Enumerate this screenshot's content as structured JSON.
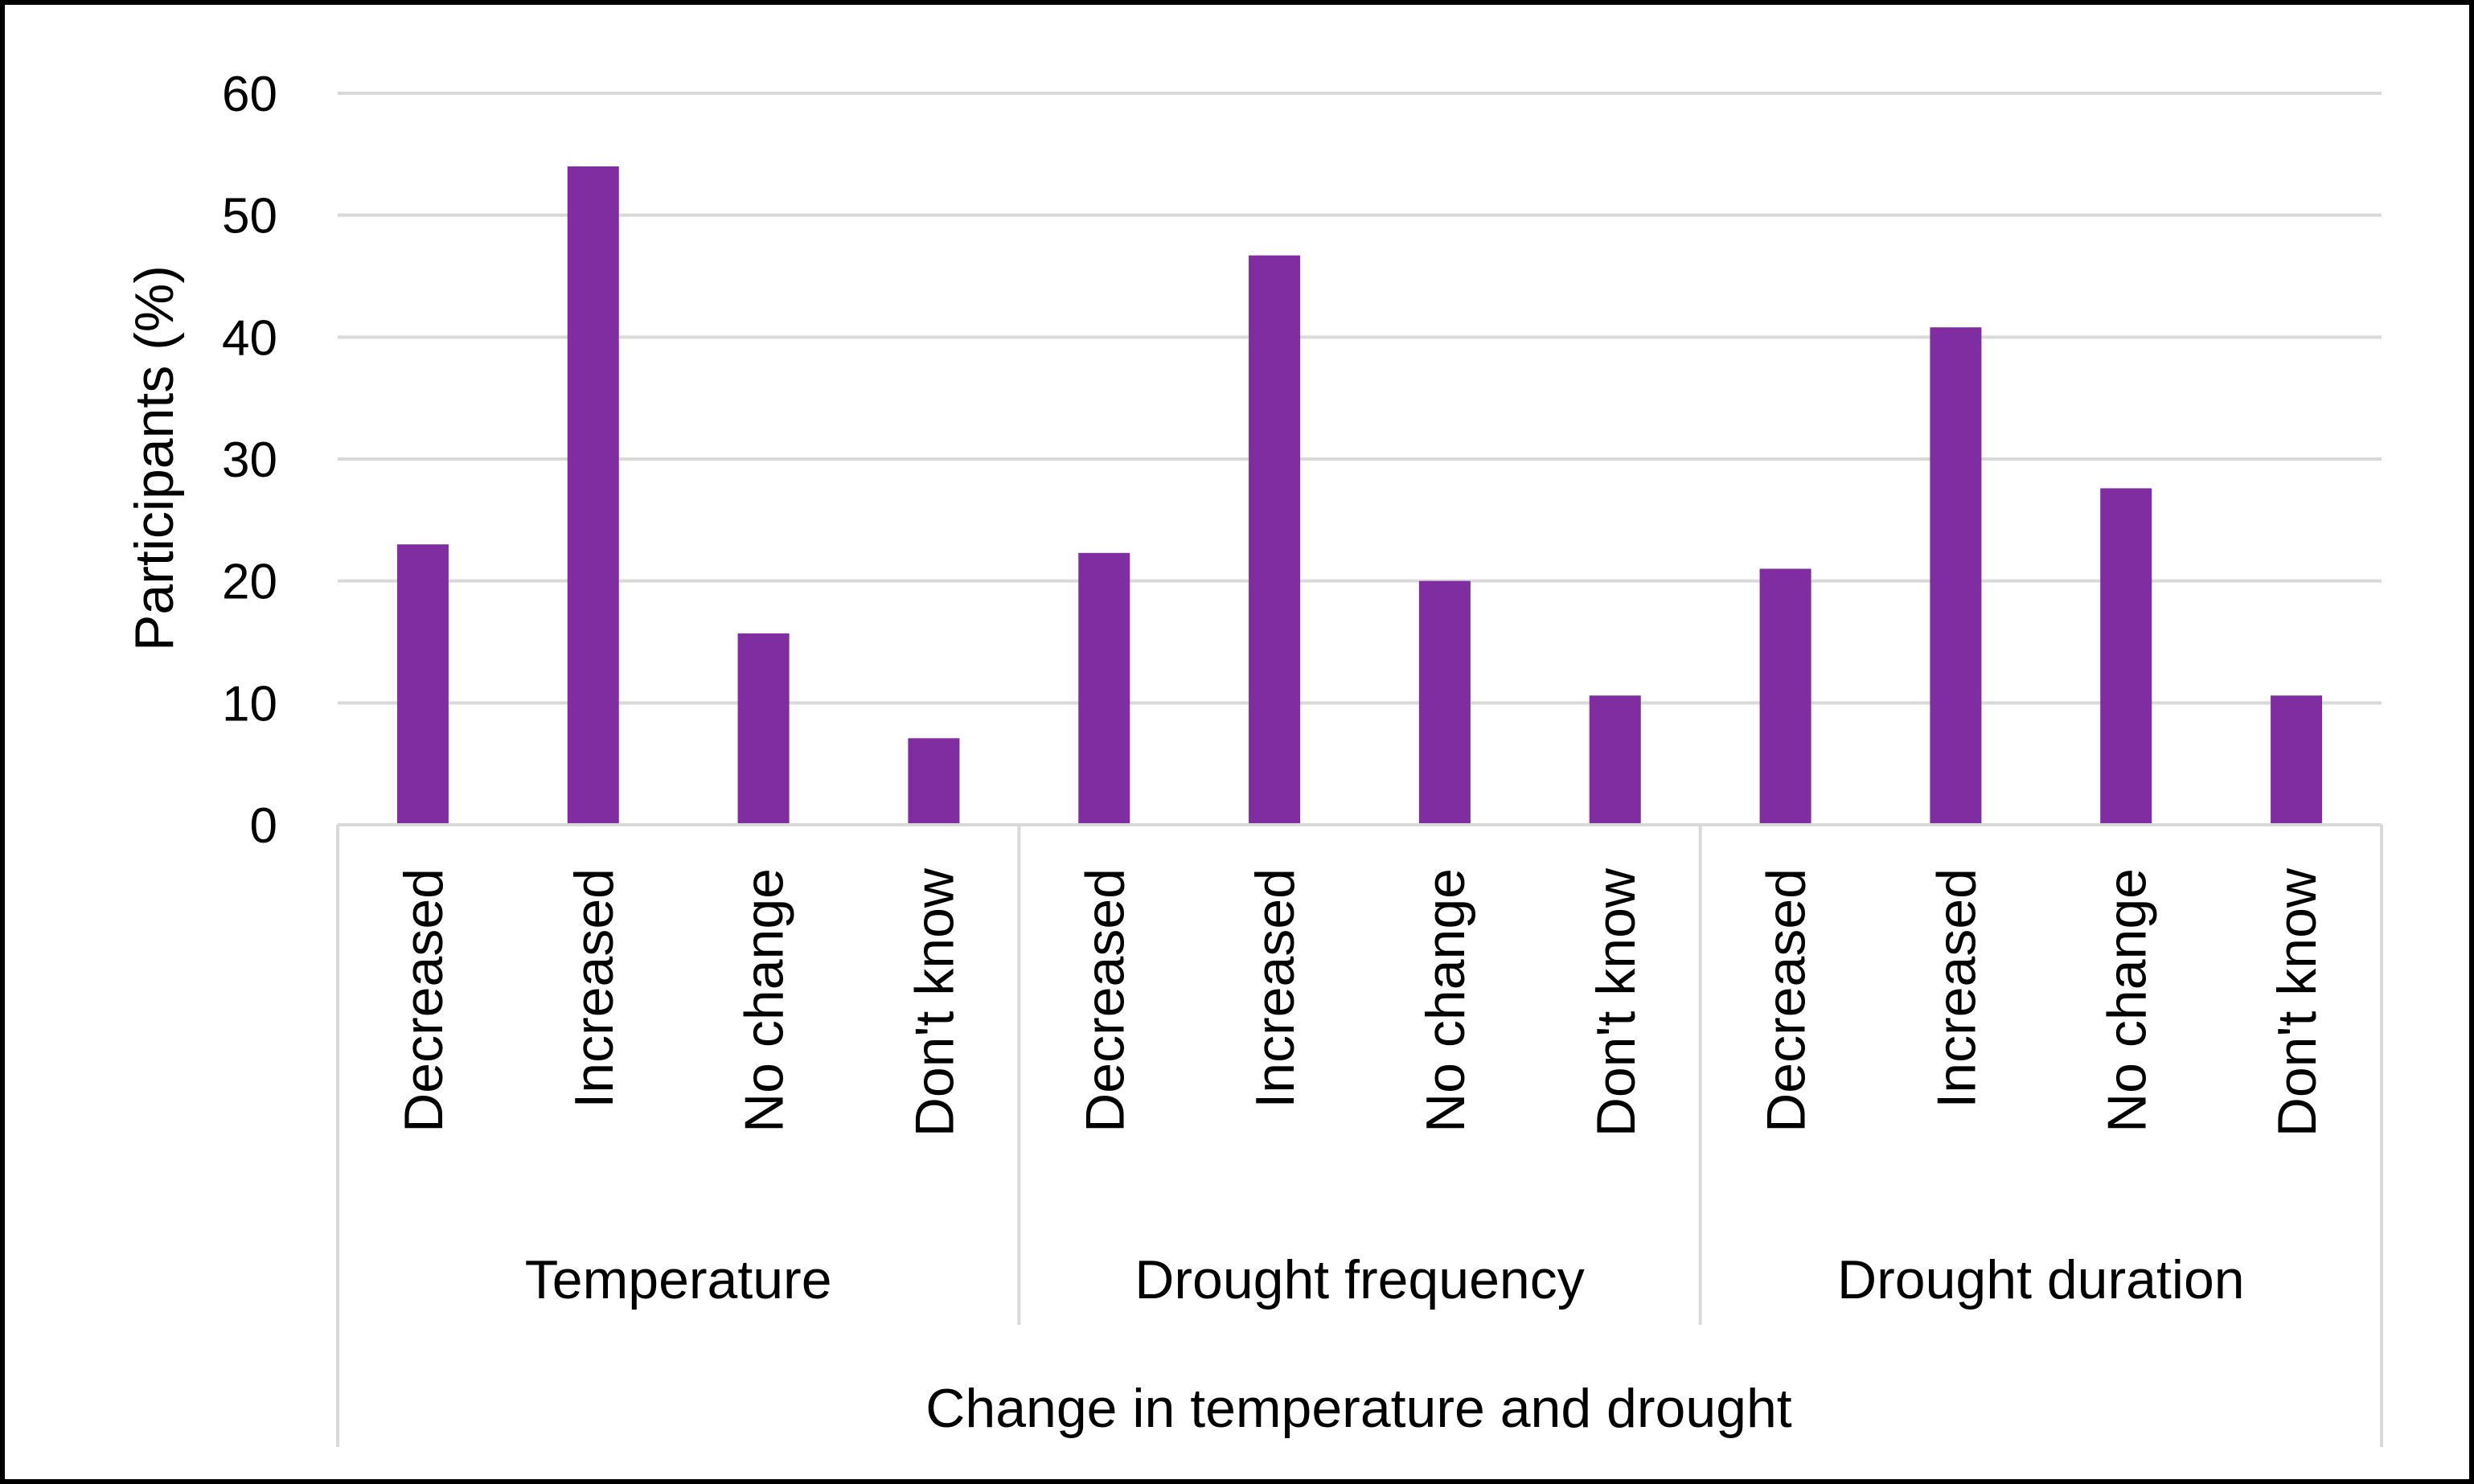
{
  "chart_data": {
    "type": "bar",
    "title": "",
    "xlabel": "Change in temperature and drought",
    "ylabel": "Participants (%)",
    "ylim": [
      0,
      60
    ],
    "yticks": [
      "0",
      "10",
      "20",
      "30",
      "40",
      "50",
      "60"
    ],
    "grid": true,
    "groups": [
      {
        "label": "Temperature",
        "categories": [
          "Decreased",
          "Increased",
          "No change",
          "Don't know"
        ],
        "values": [
          23,
          54,
          15.7,
          7.1
        ]
      },
      {
        "label": "Drought frequency",
        "categories": [
          "Decreased",
          "Increased",
          "No change",
          "Don't know"
        ],
        "values": [
          22.3,
          46.7,
          20,
          10.6
        ]
      },
      {
        "label": "Drought duration",
        "categories": [
          "Decreased",
          "Increased",
          "No change",
          "Don't know"
        ],
        "values": [
          21,
          40.8,
          27.6,
          10.6
        ]
      }
    ],
    "colors": {
      "bar": "#7F2DA0",
      "grid": "#D9D9D9",
      "axis": "#D9D9D9"
    }
  }
}
